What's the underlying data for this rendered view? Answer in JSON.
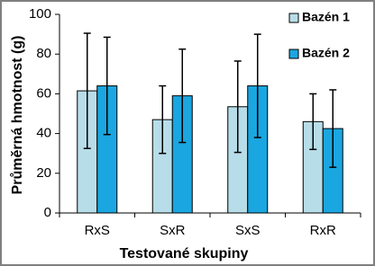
{
  "chart_data": {
    "type": "bar",
    "x_label": "Testované skupiny",
    "y_label": "Průměrná hmotnost (g)",
    "categories": [
      "RxS",
      "SxR",
      "SxS",
      "RxR"
    ],
    "series": [
      {
        "name": "Bazén 1",
        "color": "#b7dde8",
        "values": [
          61.5,
          47,
          53.5,
          46
        ],
        "errors": [
          29,
          17,
          23,
          14
        ]
      },
      {
        "name": "Bazén 2",
        "color": "#1aa6e0",
        "values": [
          64,
          59,
          64,
          42.5
        ],
        "errors": [
          24.5,
          23.5,
          26,
          19.5
        ]
      }
    ],
    "ylim": [
      0,
      100
    ],
    "yticks": [
      0,
      20,
      40,
      60,
      80,
      100
    ],
    "legend": "top-right"
  }
}
